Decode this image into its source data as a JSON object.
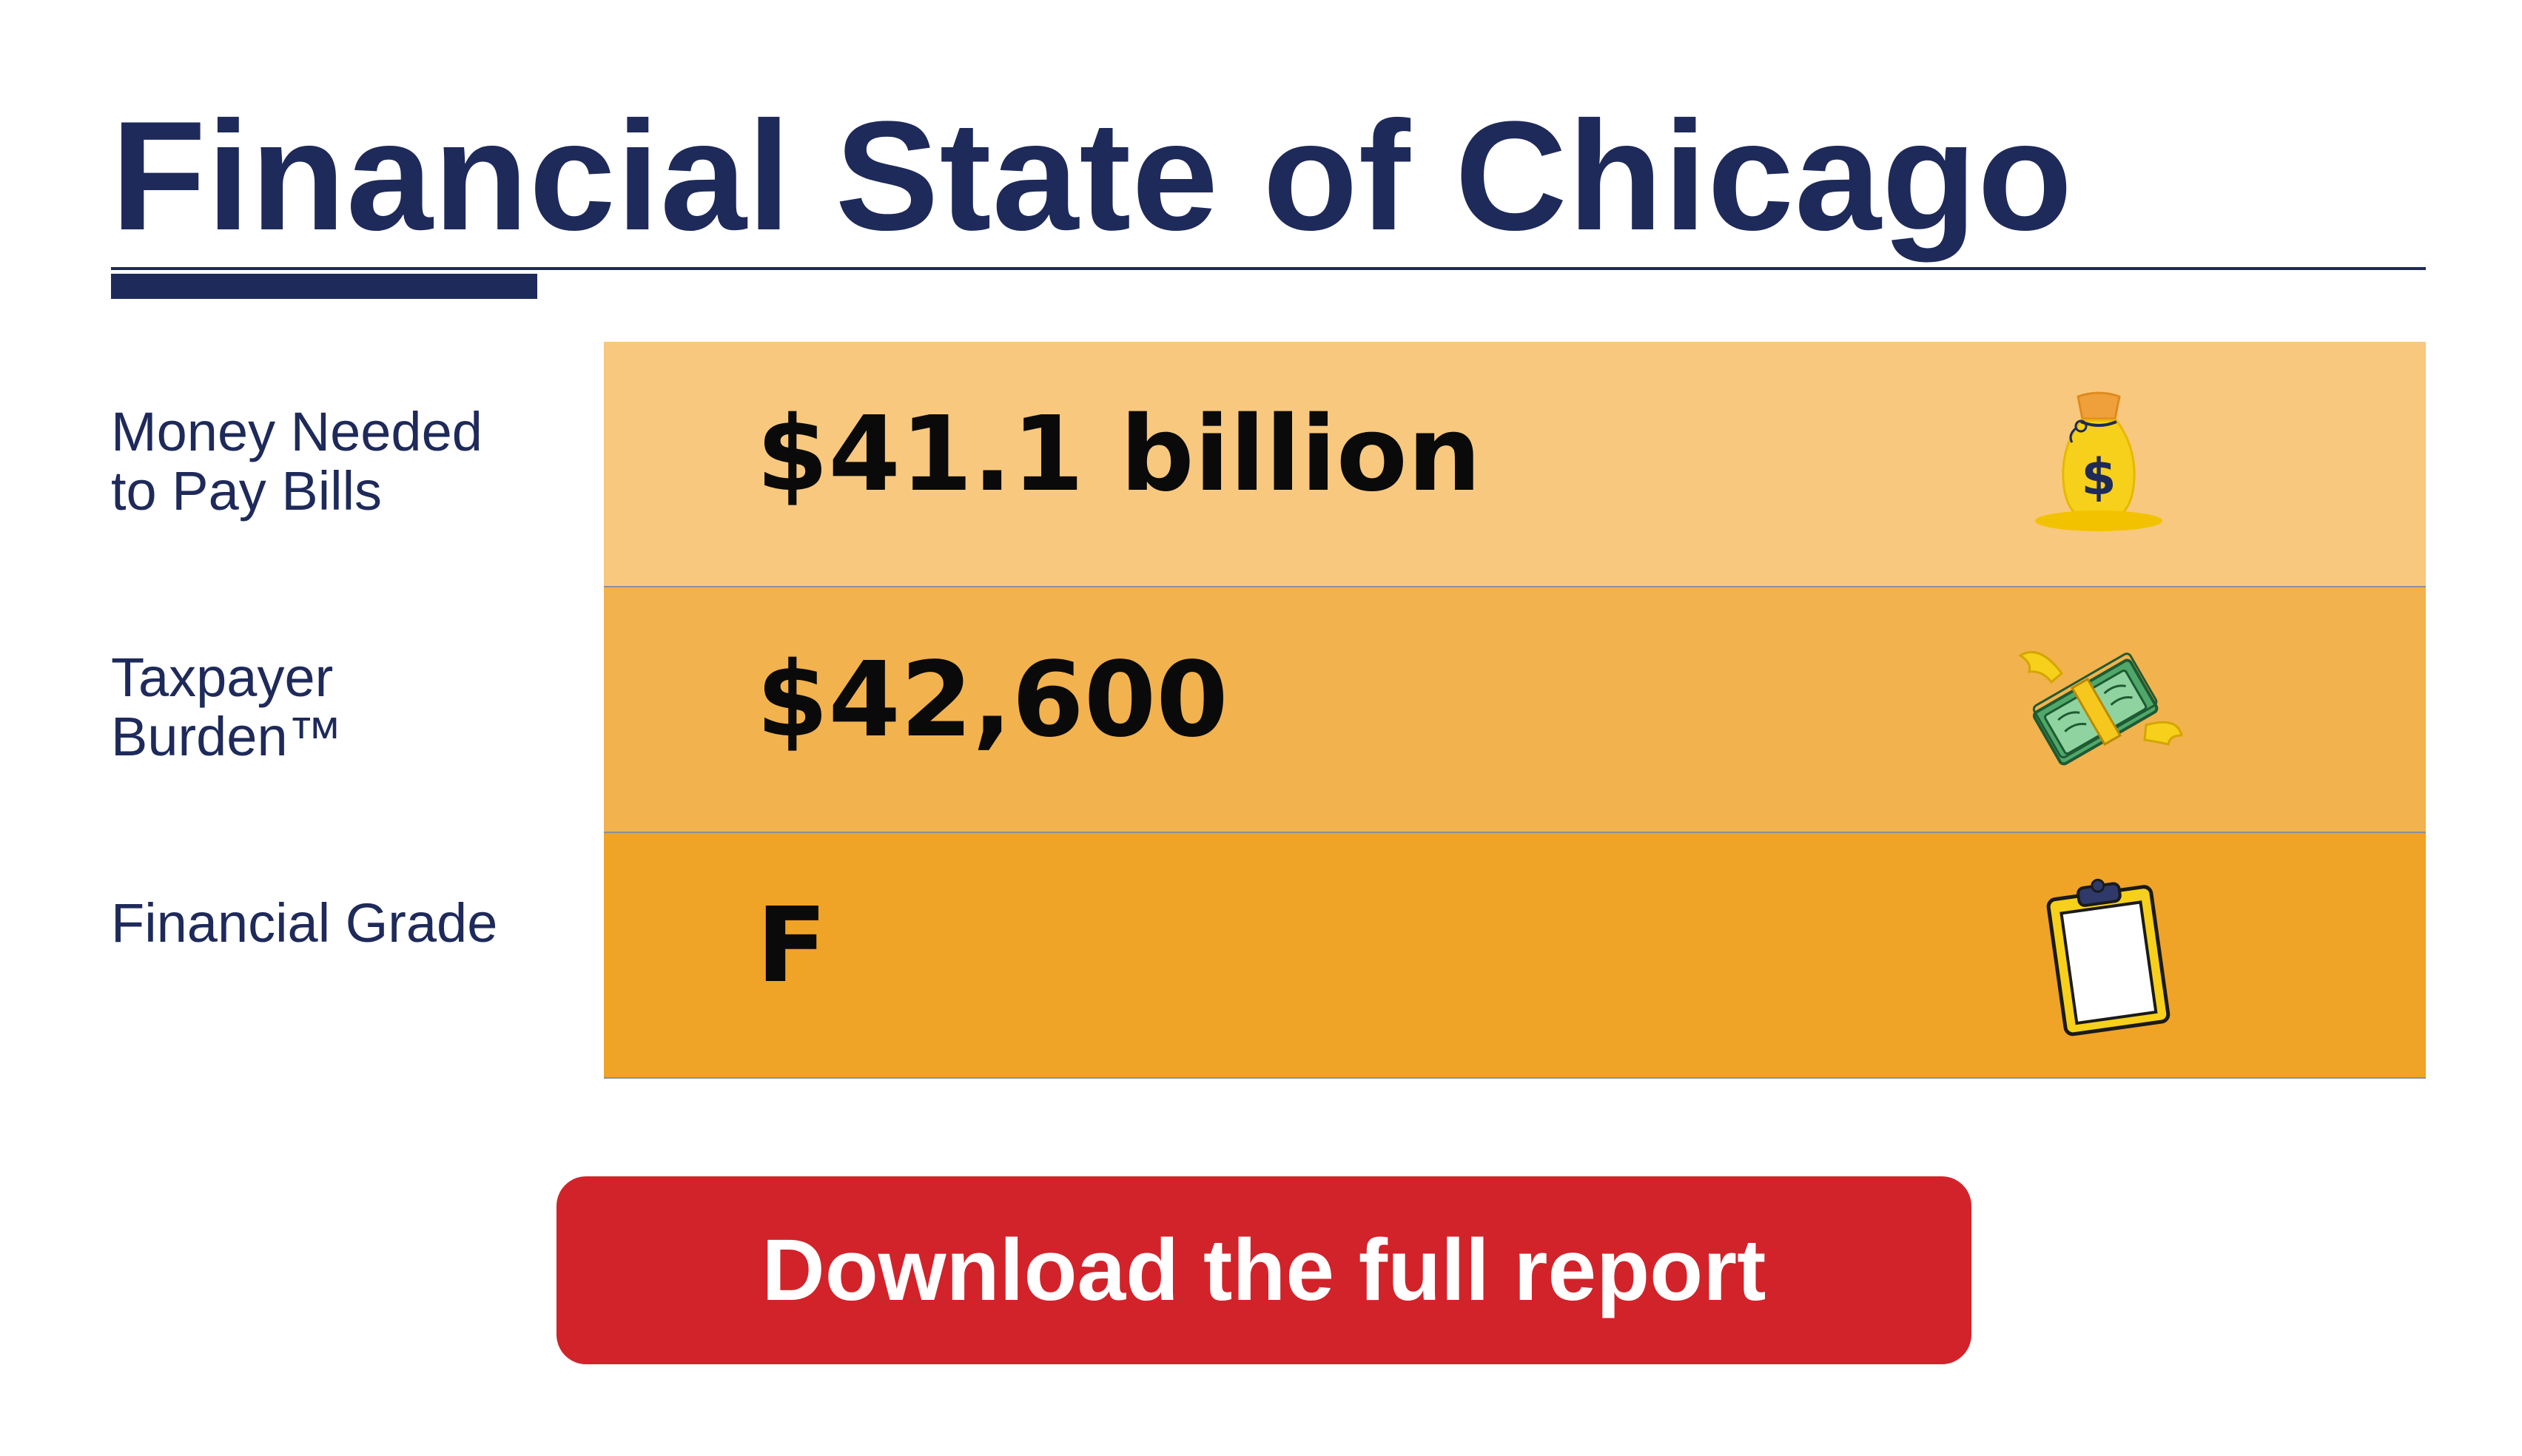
{
  "title": "Financial State of Chicago",
  "colors": {
    "navy": "#1e2a5a",
    "row_1": "#f8c87e",
    "row_2": "#f2b24e",
    "row_3": "#efa327",
    "button": "#d2232a"
  },
  "rows": [
    {
      "label": "Money Needed\nto Pay Bills",
      "value": "$41.1 billion",
      "icon": "money-bag-icon"
    },
    {
      "label": "Taxpayer\nBurden™",
      "value": "$42,600",
      "icon": "flying-money-icon"
    },
    {
      "label": "Financial Grade",
      "value": "F",
      "icon": "clipboard-icon"
    }
  ],
  "cta": {
    "label": "Download the full report"
  }
}
